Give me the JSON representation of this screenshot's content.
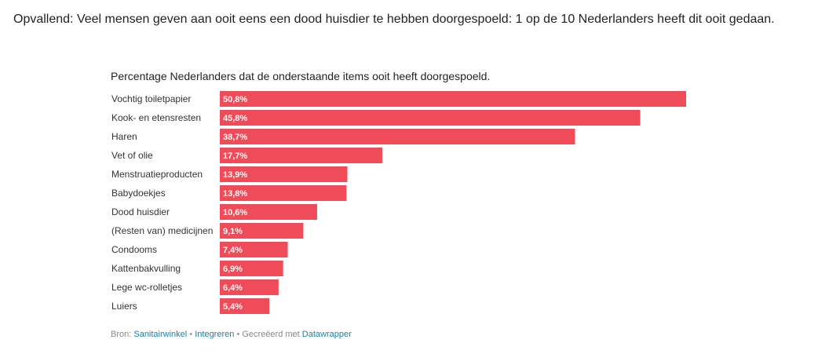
{
  "intro_text": "Opvallend: Veel mensen geven aan ooit eens een dood huisdier te hebben doorgespoeld: 1 op de 10 Nederlanders heeft dit ooit gedaan.",
  "chart_data": {
    "type": "bar",
    "orientation": "horizontal",
    "title": "Percentage Nederlanders dat de onderstaande items ooit heeft doorgespoeld.",
    "categories": [
      "Vochtig toiletpapier",
      "Kook- en etensresten",
      "Haren",
      "Vet of olie",
      "Menstruatieproducten",
      "Babydoekjes",
      "Dood huisdier",
      "(Resten van) medicijnen",
      "Condooms",
      "Kattenbakvulling",
      "Lege wc-rolletjes",
      "Luiers"
    ],
    "values": [
      50.8,
      45.8,
      38.7,
      17.7,
      13.9,
      13.8,
      10.6,
      9.1,
      7.4,
      6.9,
      6.4,
      5.4
    ],
    "value_labels": [
      "50,8%",
      "45,8%",
      "38,7%",
      "17,7%",
      "13,9%",
      "13,8%",
      "10,6%",
      "9,1%",
      "7,4%",
      "6,9%",
      "6,4%",
      "5,4%"
    ],
    "xlim": [
      0,
      50.8
    ],
    "bar_color": "#ef4b59",
    "grid": false
  },
  "footer": {
    "source_prefix": "Bron:",
    "source_link_1": "Sanitairwinkel",
    "bullet": "•",
    "embed_link": "Integreren",
    "created_prefix": "Gecreëerd met",
    "created_link": "Datawrapper"
  }
}
